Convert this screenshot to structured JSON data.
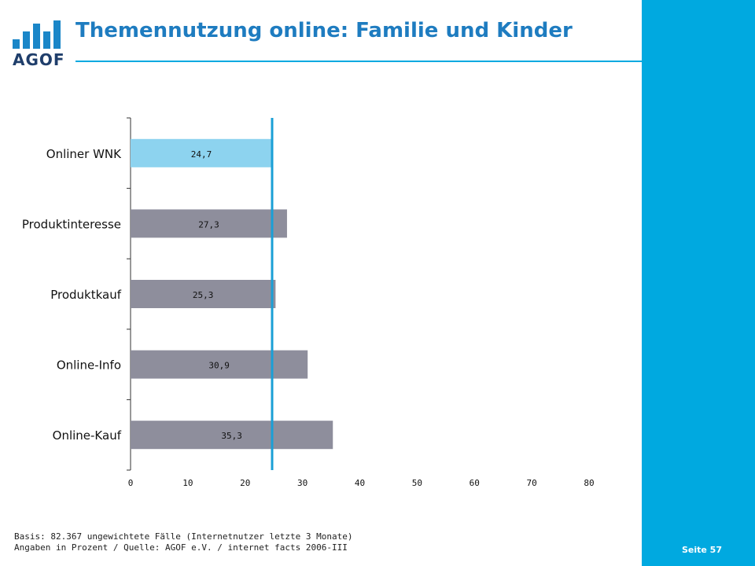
{
  "header": {
    "title": "Themennutzung online: Familie und Kinder",
    "logo_text": "AGOF"
  },
  "footer": {
    "basis": "Basis: 82.367 ungewichtete Fälle (Internetnutzer letzte 3 Monate)",
    "source": "Angaben in Prozent / Quelle: AGOF e.V. / internet facts 2006-III",
    "page_label": "Seite 57"
  },
  "colors": {
    "accent": "#00a9e0",
    "highlight_bar": "#8dd3ef",
    "bar": "#8e8e9c",
    "reference_line": "#1a9fd6"
  },
  "chart_data": {
    "type": "bar",
    "orientation": "horizontal",
    "categories": [
      "Onliner WNK",
      "Produktinteresse",
      "Produktkauf",
      "Online-Info",
      "Online-Kauf"
    ],
    "values": [
      24.7,
      27.3,
      25.3,
      30.9,
      35.3
    ],
    "value_labels": [
      "24,7",
      "27,3",
      "25,3",
      "30,9",
      "35,3"
    ],
    "highlight_index": 0,
    "reference_value": 24.7,
    "xlim": [
      0,
      80
    ],
    "xticks": [
      "0",
      "10",
      "20",
      "30",
      "40",
      "50",
      "60",
      "70",
      "80"
    ],
    "xtick_values": [
      0,
      10,
      20,
      30,
      40,
      50,
      60,
      70,
      80
    ],
    "grid": false,
    "legend": "none"
  }
}
